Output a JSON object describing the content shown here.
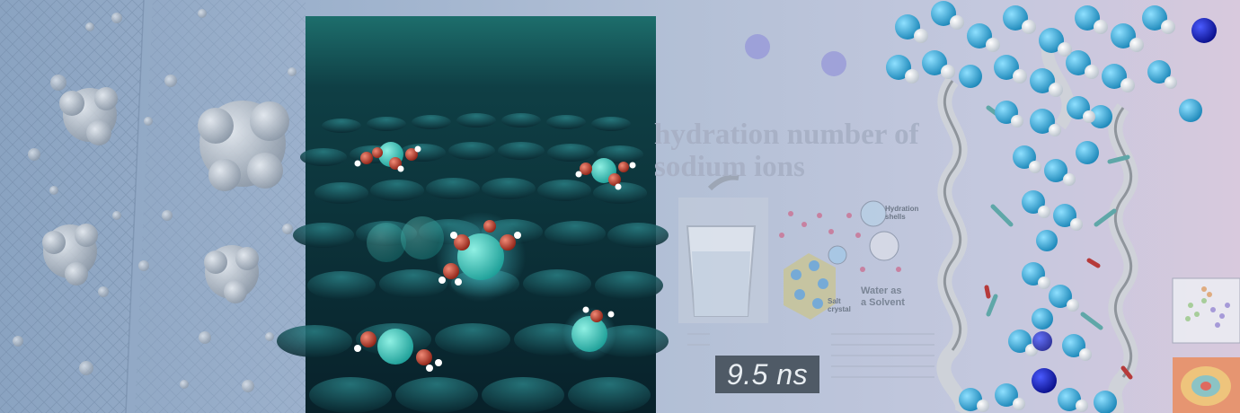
{
  "panel": {
    "title": "hydration number of\nsodium ions",
    "annotations": {
      "hydration_shells": "Hydration\nshells",
      "salt_crystal": "Salt\ncrystal",
      "water_solvent": "Water as\na Solvent"
    }
  },
  "timer": {
    "label": "9.5 ns"
  },
  "colors": {
    "background": "#8fa6c2",
    "dark_panel": "#0d2a33",
    "ion": "#3fc3b6",
    "oxygen": "#b23a2a",
    "water_atom": "#2f9fd0",
    "time_badge": "#4f5a66"
  }
}
